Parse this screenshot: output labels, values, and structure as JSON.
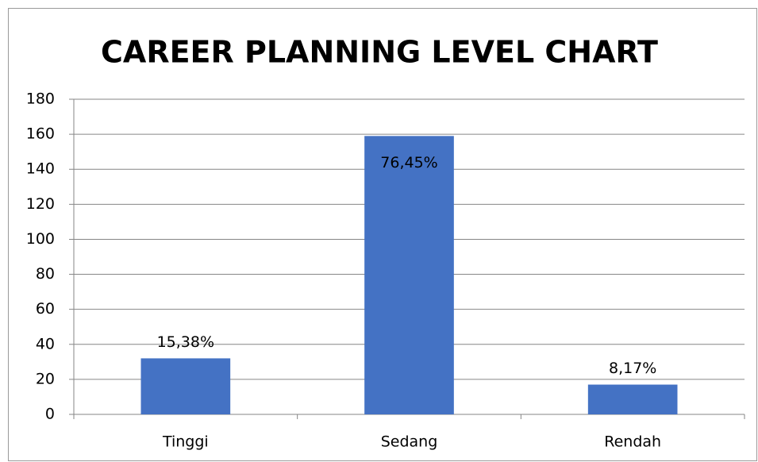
{
  "chart_data": {
    "type": "bar",
    "title": "CAREER PLANNING LEVEL CHART",
    "categories": [
      "Tinggi",
      "Sedang",
      "Rendah"
    ],
    "values": [
      32,
      159,
      17
    ],
    "annotations": [
      "15,38%",
      "76,45%",
      "8,17%"
    ],
    "color": "#4472c4",
    "ylim": [
      0,
      180
    ],
    "yticks": [
      0,
      20,
      40,
      60,
      80,
      100,
      120,
      140,
      160,
      180
    ],
    "grid": true
  }
}
